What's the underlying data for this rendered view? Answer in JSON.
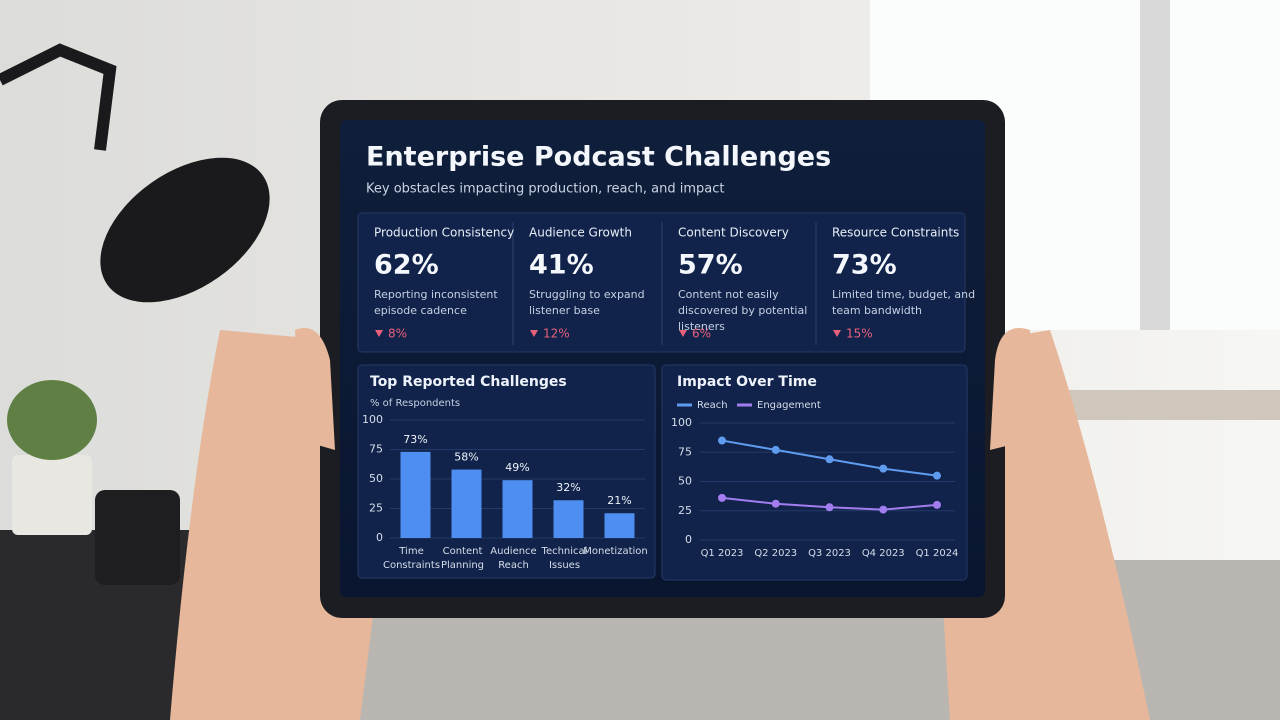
{
  "header": {
    "title": "Enterprise Podcast Challenges",
    "subtitle": "Key obstacles impacting production, reach, and impact"
  },
  "kpis": [
    {
      "title": "Production Consistency",
      "value": "62%",
      "description": "Reporting inconsistent episode cadence",
      "change": "8%"
    },
    {
      "title": "Audience Growth",
      "value": "41%",
      "description": "Struggling to expand listener base",
      "change": "12%"
    },
    {
      "title": "Content Discovery",
      "value": "57%",
      "description": "Content not easily discovered by potential listeners",
      "change": "6%"
    },
    {
      "title": "Resource Constraints",
      "value": "73%",
      "description": "Limited time, budget, and team bandwidth",
      "change": "15%"
    }
  ],
  "chart_data": [
    {
      "type": "bar",
      "title": "Top Reported Challenges",
      "subtitle": "% of Respondents",
      "categories": [
        "Time Constraints",
        "Content Planning",
        "Audience Reach",
        "Technical Issues",
        "Monetization"
      ],
      "values": [
        73,
        58,
        49,
        32,
        21
      ],
      "value_labels": [
        "73%",
        "58%",
        "49%",
        "32%",
        "21%"
      ],
      "color": "#4d8ef0",
      "ylim": [
        0,
        100
      ],
      "yticks": [
        0,
        25,
        50,
        75,
        100
      ],
      "grid": true
    },
    {
      "type": "line",
      "title": "Impact Over Time",
      "categories": [
        "Q1 2023",
        "Q2 2023",
        "Q3 2023",
        "Q4 2023",
        "Q1 2024"
      ],
      "series": [
        {
          "name": "Reach",
          "color": "#5f9cf0",
          "values": [
            85,
            77,
            69,
            61,
            55
          ]
        },
        {
          "name": "Engagement",
          "color": "#a27df0",
          "values": [
            36,
            31,
            28,
            26,
            30
          ]
        }
      ],
      "ylim": [
        0,
        100
      ],
      "yticks": [
        0,
        25,
        50,
        75,
        100
      ],
      "grid": true
    }
  ]
}
